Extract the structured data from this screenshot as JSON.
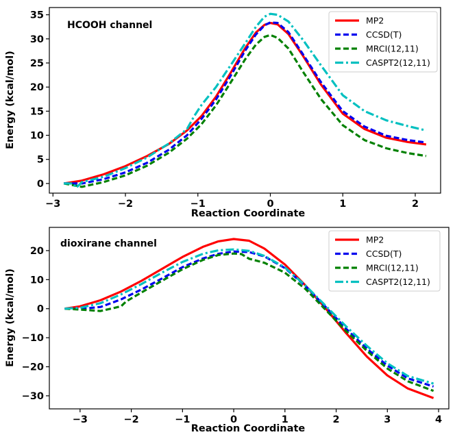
{
  "chart_data": [
    {
      "type": "line",
      "title": "HCOOH channel",
      "xlabel": "Reaction Coordinate",
      "ylabel": "Energy (kcal/mol)",
      "xlim": [
        -3.05,
        2.35
      ],
      "ylim": [
        -2.0,
        36.5
      ],
      "xticks": [
        -3,
        -2,
        -1,
        0,
        1,
        2
      ],
      "yticks": [
        0,
        5,
        10,
        15,
        20,
        25,
        30,
        35
      ],
      "legend_position": "top-right",
      "series": [
        {
          "name": "MP2",
          "color": "#ff0000",
          "style": "solid",
          "x": [
            -2.85,
            -2.6,
            -2.3,
            -2.0,
            -1.7,
            -1.4,
            -1.15,
            -0.95,
            -0.75,
            -0.55,
            -0.35,
            -0.2,
            -0.08,
            0.0,
            0.1,
            0.25,
            0.45,
            0.7,
            1.0,
            1.3,
            1.6,
            1.9,
            2.15
          ],
          "y": [
            0.0,
            0.6,
            1.9,
            3.6,
            5.7,
            8.2,
            11.0,
            14.0,
            18.0,
            22.9,
            28.0,
            31.3,
            32.9,
            33.3,
            33.0,
            31.0,
            26.5,
            20.5,
            14.5,
            11.3,
            9.5,
            8.6,
            8.1
          ]
        },
        {
          "name": "CCSD(T)",
          "color": "#0000ee",
          "style": "dashed",
          "x": [
            -2.85,
            -2.6,
            -2.3,
            -2.0,
            -1.7,
            -1.4,
            -1.15,
            -0.95,
            -0.75,
            -0.55,
            -0.35,
            -0.2,
            -0.08,
            0.0,
            0.1,
            0.25,
            0.45,
            0.7,
            1.0,
            1.3,
            1.6,
            1.9,
            2.15
          ],
          "y": [
            0.0,
            0.0,
            0.9,
            2.3,
            4.3,
            7.0,
            10.0,
            13.4,
            17.4,
            22.3,
            27.5,
            30.9,
            32.8,
            33.4,
            33.3,
            31.4,
            26.8,
            21.0,
            15.0,
            11.8,
            9.9,
            9.0,
            8.5
          ]
        },
        {
          "name": "MRCI(12,11)",
          "color": "#008000",
          "style": "dashed",
          "x": [
            -2.85,
            -2.6,
            -2.3,
            -2.0,
            -1.7,
            -1.4,
            -1.15,
            -0.95,
            -0.75,
            -0.55,
            -0.35,
            -0.2,
            -0.08,
            0.0,
            0.1,
            0.25,
            0.45,
            0.7,
            1.0,
            1.3,
            1.6,
            1.9,
            2.15
          ],
          "y": [
            0.0,
            -0.7,
            0.3,
            1.7,
            3.7,
            6.4,
            9.3,
            12.3,
            16.2,
            20.9,
            25.7,
            28.8,
            30.4,
            30.8,
            30.2,
            28.0,
            23.2,
            17.5,
            12.1,
            9.0,
            7.3,
            6.3,
            5.7
          ]
        },
        {
          "name": "CASPT2(12,11)",
          "color": "#00c0c0",
          "style": "dashdot",
          "x": [
            -2.85,
            -2.72,
            -2.68,
            -2.6,
            -2.3,
            -2.0,
            -1.7,
            -1.4,
            -1.15,
            -1.05,
            -0.95,
            -0.75,
            -0.55,
            -0.35,
            -0.2,
            -0.08,
            0.0,
            0.1,
            0.25,
            0.45,
            0.7,
            1.0,
            1.3,
            1.6,
            1.9,
            2.15
          ],
          "y": [
            0.0,
            0.0,
            -0.9,
            0.3,
            1.4,
            3.2,
            5.4,
            8.3,
            11.3,
            14.0,
            16.3,
            20.0,
            24.5,
            29.0,
            32.5,
            34.6,
            35.2,
            35.0,
            33.6,
            29.8,
            24.5,
            18.3,
            15.0,
            13.1,
            11.9,
            11.0
          ]
        }
      ]
    },
    {
      "type": "line",
      "title": "dioxirane channel",
      "xlabel": "Reaction Coordinate",
      "ylabel": "Energy (kcal/mol)",
      "xlim": [
        -3.6,
        4.2
      ],
      "ylim": [
        -34.5,
        28.0
      ],
      "xticks": [
        -3,
        -2,
        -1,
        0,
        1,
        2,
        3,
        4
      ],
      "yticks": [
        -30,
        -20,
        -10,
        0,
        10,
        20
      ],
      "legend_position": "top-right",
      "series": [
        {
          "name": "MP2",
          "color": "#ff0000",
          "style": "solid",
          "x": [
            -3.3,
            -3.0,
            -2.6,
            -2.2,
            -1.8,
            -1.4,
            -1.0,
            -0.6,
            -0.3,
            0.0,
            0.3,
            0.6,
            1.0,
            1.4,
            1.8,
            2.2,
            2.6,
            3.0,
            3.4,
            3.9
          ],
          "y": [
            0.0,
            0.8,
            2.9,
            5.9,
            9.6,
            13.7,
            17.8,
            21.3,
            23.2,
            24.0,
            23.4,
            20.7,
            15.2,
            8.0,
            0.0,
            -8.5,
            -16.5,
            -23.0,
            -27.5,
            -30.8
          ]
        },
        {
          "name": "CCSD(T)",
          "color": "#0000ee",
          "style": "dashed",
          "x": [
            -3.3,
            -3.0,
            -2.6,
            -2.2,
            -1.8,
            -1.4,
            -1.0,
            -0.6,
            -0.3,
            0.0,
            0.3,
            0.6,
            1.0,
            1.4,
            1.8,
            2.2,
            2.6,
            3.0,
            3.4,
            3.9
          ],
          "y": [
            0.0,
            -0.1,
            0.6,
            3.2,
            6.6,
            10.4,
            14.3,
            17.3,
            18.9,
            19.7,
            19.5,
            18.0,
            14.0,
            7.8,
            0.5,
            -7.0,
            -13.8,
            -19.6,
            -24.0,
            -26.8
          ]
        },
        {
          "name": "MRCI(12,11)",
          "color": "#008000",
          "style": "dashed",
          "x": [
            -3.3,
            -3.0,
            -2.6,
            -2.2,
            -2.1,
            -1.8,
            -1.4,
            -1.0,
            -0.6,
            -0.3,
            0.0,
            0.15,
            0.3,
            0.6,
            1.0,
            1.4,
            1.8,
            2.2,
            2.6,
            3.0,
            3.4,
            3.9
          ],
          "y": [
            0.0,
            -0.3,
            -0.8,
            0.8,
            2.5,
            5.6,
            9.6,
            13.6,
            16.8,
            18.5,
            19.0,
            18.8,
            17.2,
            15.8,
            12.4,
            6.8,
            -0.5,
            -7.8,
            -14.5,
            -20.6,
            -25.0,
            -28.3
          ]
        },
        {
          "name": "CASPT2(12,11)",
          "color": "#00c0c0",
          "style": "dashdot",
          "x": [
            -3.3,
            -3.0,
            -2.6,
            -2.2,
            -1.8,
            -1.4,
            -1.0,
            -0.6,
            -0.3,
            0.0,
            0.3,
            0.6,
            1.0,
            1.4,
            1.8,
            2.2,
            2.6,
            3.0,
            3.4,
            3.9
          ],
          "y": [
            0.0,
            0.3,
            1.9,
            4.9,
            8.5,
            12.4,
            16.1,
            18.9,
            20.1,
            20.4,
            19.9,
            18.2,
            14.2,
            8.0,
            0.9,
            -6.2,
            -12.8,
            -18.8,
            -23.2,
            -25.8
          ]
        }
      ]
    }
  ]
}
